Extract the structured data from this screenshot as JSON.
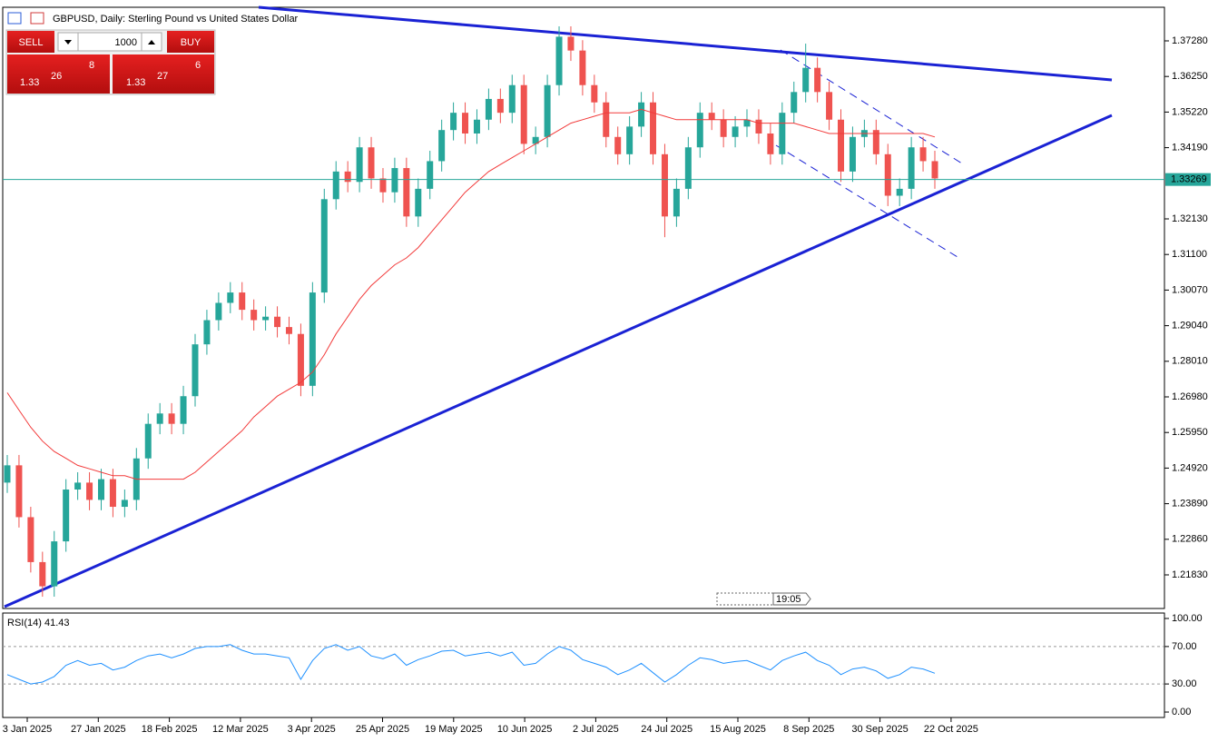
{
  "header": {
    "symbol_title": "GBPUSD, Daily:  Sterling Pound vs United States Dollar",
    "time_label": "19:05"
  },
  "trade_panel": {
    "sell": "SELL",
    "buy": "BUY",
    "volume": "1000",
    "sell_price": {
      "big": "1.33",
      "main": "26",
      "pip": "8"
    },
    "buy_price": {
      "big": "1.33",
      "main": "27",
      "pip": "6"
    }
  },
  "chart_data": [
    {
      "type": "candlestick",
      "title": "GBPUSD, Daily",
      "x_labels": [
        "3 Jan 2025",
        "27 Jan 2025",
        "18 Feb 2025",
        "12 Mar 2025",
        "3 Apr 2025",
        "25 Apr 2025",
        "19 May 2025",
        "10 Jun 2025",
        "2 Jul 2025",
        "24 Jul 2025",
        "15 Aug 2025",
        "8 Sep 2025",
        "30 Sep 2025",
        "22 Oct 2025"
      ],
      "open": [
        1.245,
        1.25,
        1.235,
        1.222,
        1.215,
        1.228,
        1.243,
        1.245,
        1.24,
        1.246,
        1.238,
        1.24,
        1.252,
        1.262,
        1.265,
        1.262,
        1.27,
        1.285,
        1.292,
        1.297,
        1.3,
        1.295,
        1.292,
        1.293,
        1.29,
        1.288,
        1.273,
        1.3,
        1.327,
        1.335,
        1.332,
        1.342,
        1.333,
        1.329,
        1.336,
        1.322,
        1.33,
        1.338,
        1.347,
        1.352,
        1.346,
        1.35,
        1.356,
        1.352,
        1.36,
        1.343,
        1.345,
        1.36,
        1.374,
        1.37,
        1.36,
        1.355,
        1.345,
        1.34,
        1.348,
        1.355,
        1.34,
        1.322,
        1.33,
        1.342,
        1.352,
        1.35,
        1.345,
        1.348,
        1.35,
        1.346,
        1.34,
        1.352,
        1.358,
        1.365,
        1.358,
        1.35,
        1.335,
        1.345,
        1.347,
        1.34,
        1.328,
        1.33,
        1.342,
        1.338
      ],
      "high": [
        1.253,
        1.253,
        1.238,
        1.225,
        1.231,
        1.246,
        1.248,
        1.248,
        1.249,
        1.249,
        1.243,
        1.255,
        1.265,
        1.268,
        1.268,
        1.273,
        1.288,
        1.295,
        1.3,
        1.303,
        1.303,
        1.298,
        1.296,
        1.296,
        1.293,
        1.291,
        1.303,
        1.33,
        1.338,
        1.338,
        1.345,
        1.345,
        1.336,
        1.339,
        1.339,
        1.333,
        1.341,
        1.35,
        1.355,
        1.355,
        1.353,
        1.359,
        1.359,
        1.363,
        1.363,
        1.348,
        1.363,
        1.377,
        1.377,
        1.373,
        1.363,
        1.358,
        1.348,
        1.351,
        1.358,
        1.358,
        1.343,
        1.333,
        1.345,
        1.355,
        1.355,
        1.353,
        1.351,
        1.353,
        1.353,
        1.349,
        1.355,
        1.361,
        1.372,
        1.368,
        1.361,
        1.353,
        1.348,
        1.35,
        1.35,
        1.343,
        1.333,
        1.345,
        1.345,
        1.341
      ],
      "low": [
        1.242,
        1.232,
        1.219,
        1.212,
        1.212,
        1.225,
        1.24,
        1.237,
        1.237,
        1.235,
        1.235,
        1.237,
        1.249,
        1.259,
        1.259,
        1.259,
        1.267,
        1.282,
        1.289,
        1.294,
        1.292,
        1.289,
        1.289,
        1.287,
        1.285,
        1.27,
        1.27,
        1.297,
        1.324,
        1.329,
        1.329,
        1.33,
        1.326,
        1.326,
        1.319,
        1.319,
        1.327,
        1.335,
        1.344,
        1.343,
        1.343,
        1.347,
        1.349,
        1.349,
        1.34,
        1.34,
        1.342,
        1.357,
        1.367,
        1.357,
        1.352,
        1.342,
        1.337,
        1.337,
        1.345,
        1.337,
        1.316,
        1.319,
        1.327,
        1.339,
        1.347,
        1.342,
        1.342,
        1.345,
        1.343,
        1.337,
        1.337,
        1.349,
        1.355,
        1.355,
        1.347,
        1.332,
        1.332,
        1.342,
        1.337,
        1.325,
        1.325,
        1.327,
        1.335,
        1.33
      ],
      "close": [
        1.25,
        1.235,
        1.222,
        1.215,
        1.228,
        1.243,
        1.245,
        1.24,
        1.246,
        1.238,
        1.24,
        1.252,
        1.262,
        1.265,
        1.262,
        1.27,
        1.285,
        1.292,
        1.297,
        1.3,
        1.295,
        1.292,
        1.293,
        1.29,
        1.288,
        1.273,
        1.3,
        1.327,
        1.335,
        1.332,
        1.342,
        1.333,
        1.329,
        1.336,
        1.322,
        1.33,
        1.338,
        1.347,
        1.352,
        1.346,
        1.35,
        1.356,
        1.352,
        1.36,
        1.343,
        1.345,
        1.36,
        1.374,
        1.37,
        1.36,
        1.355,
        1.345,
        1.34,
        1.348,
        1.355,
        1.34,
        1.322,
        1.33,
        1.342,
        1.352,
        1.35,
        1.345,
        1.348,
        1.35,
        1.346,
        1.34,
        1.352,
        1.358,
        1.365,
        1.358,
        1.35,
        1.335,
        1.345,
        1.347,
        1.34,
        1.328,
        1.33,
        1.342,
        1.338,
        1.333
      ],
      "ma_values": [
        1.271,
        1.266,
        1.261,
        1.257,
        1.254,
        1.252,
        1.25,
        1.249,
        1.248,
        1.247,
        1.247,
        1.246,
        1.246,
        1.246,
        1.246,
        1.246,
        1.248,
        1.251,
        1.254,
        1.257,
        1.26,
        1.264,
        1.267,
        1.27,
        1.272,
        1.274,
        1.277,
        1.282,
        1.288,
        1.293,
        1.298,
        1.302,
        1.305,
        1.308,
        1.31,
        1.313,
        1.317,
        1.321,
        1.325,
        1.329,
        1.332,
        1.335,
        1.337,
        1.339,
        1.341,
        1.343,
        1.345,
        1.347,
        1.349,
        1.35,
        1.351,
        1.352,
        1.352,
        1.352,
        1.353,
        1.352,
        1.351,
        1.35,
        1.35,
        1.35,
        1.35,
        1.35,
        1.35,
        1.35,
        1.349,
        1.349,
        1.349,
        1.349,
        1.348,
        1.347,
        1.346,
        1.346,
        1.346,
        1.346,
        1.346,
        1.346,
        1.346,
        1.346,
        1.346,
        1.345
      ],
      "up_color": "#26a69a",
      "down_color": "#ef5350",
      "ma_color": "#f23a3a",
      "current_price": 1.33269,
      "current_price_color": "#26a69a",
      "ylim": [
        1.20858,
        1.38252
      ],
      "yticks": [
        {
          "value": 1.3728,
          "label": "1.37280"
        },
        {
          "value": 1.3625,
          "label": "1.36250"
        },
        {
          "value": 1.3522,
          "label": "1.35220"
        },
        {
          "value": 1.3419,
          "label": "1.34190"
        },
        {
          "value": 1.3213,
          "label": "1.32130"
        },
        {
          "value": 1.311,
          "label": "1.31100"
        },
        {
          "value": 1.3007,
          "label": "1.30070"
        },
        {
          "value": 1.2904,
          "label": "1.29040"
        },
        {
          "value": 1.2801,
          "label": "1.28010"
        },
        {
          "value": 1.2698,
          "label": "1.26980"
        },
        {
          "value": 1.2595,
          "label": "1.25950"
        },
        {
          "value": 1.2492,
          "label": "1.24920"
        },
        {
          "value": 1.2389,
          "label": "1.23890"
        },
        {
          "value": 1.2286,
          "label": "1.22860"
        },
        {
          "value": 1.2183,
          "label": "1.21830"
        }
      ],
      "grid": false
    },
    {
      "type": "line",
      "title": "RSI(14) 41.43",
      "values": [
        40,
        35,
        30,
        32,
        38,
        50,
        55,
        50,
        52,
        45,
        48,
        55,
        60,
        62,
        58,
        62,
        68,
        70,
        70,
        72,
        66,
        62,
        62,
        60,
        58,
        35,
        55,
        68,
        72,
        66,
        70,
        60,
        57,
        62,
        50,
        56,
        60,
        65,
        66,
        60,
        62,
        64,
        60,
        64,
        50,
        52,
        62,
        70,
        66,
        56,
        52,
        48,
        40,
        45,
        52,
        42,
        32,
        40,
        50,
        58,
        56,
        52,
        54,
        55,
        50,
        45,
        55,
        60,
        64,
        55,
        50,
        40,
        46,
        48,
        44,
        36,
        40,
        48,
        46,
        41.43
      ],
      "color": "#1e90ff",
      "ylim": [
        -5.8,
        105.8
      ],
      "yticks": [
        {
          "value": 100,
          "label": "100.00"
        },
        {
          "value": 70,
          "label": "70.00"
        },
        {
          "value": 30,
          "label": "30.00"
        },
        {
          "value": 0,
          "label": "0.00"
        }
      ],
      "levels": [
        70,
        30
      ]
    }
  ]
}
